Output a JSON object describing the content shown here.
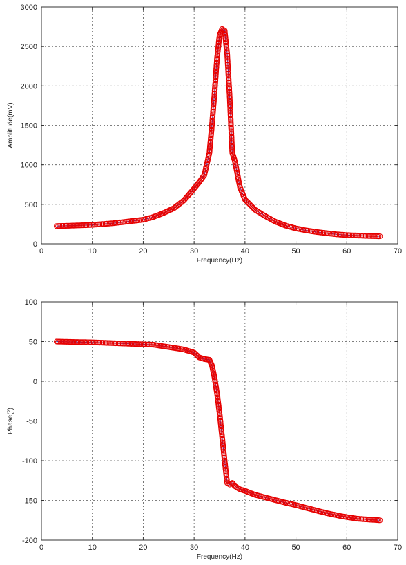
{
  "chart_data": [
    {
      "type": "line",
      "xlabel": "Frequency(Hz)",
      "ylabel": "Amplitude(mV)",
      "xlim": [
        0,
        70
      ],
      "ylim": [
        0,
        3000
      ],
      "xticks": [
        0,
        10,
        20,
        30,
        40,
        50,
        60,
        70
      ],
      "yticks": [
        0,
        500,
        1000,
        1500,
        2000,
        2500,
        3000
      ],
      "grid": true,
      "line_color": "#2b2bd6",
      "marker_color": "#e60000",
      "marker": "circle",
      "series": [
        {
          "x": [
            3,
            5,
            8,
            10,
            12,
            14,
            16,
            18,
            20,
            22,
            24,
            26,
            28,
            30,
            31,
            32,
            33,
            33.5,
            34,
            34.5,
            35,
            35.5,
            36,
            36.5,
            37,
            37.5,
            38,
            39,
            40,
            42,
            44,
            46,
            48,
            50,
            52,
            54,
            56,
            58,
            60,
            62,
            64,
            66.5
          ],
          "y": [
            225,
            228,
            235,
            240,
            250,
            260,
            275,
            290,
            305,
            340,
            390,
            450,
            550,
            700,
            780,
            870,
            1150,
            1500,
            1900,
            2350,
            2640,
            2720,
            2700,
            2400,
            1850,
            1150,
            1050,
            720,
            560,
            430,
            350,
            280,
            230,
            195,
            170,
            150,
            135,
            120,
            110,
            105,
            100,
            95
          ]
        }
      ]
    },
    {
      "type": "line",
      "xlabel": "Frequency(Hz)",
      "ylabel": "Phase(°)",
      "xlim": [
        0,
        70
      ],
      "ylim": [
        -200,
        100
      ],
      "xticks": [
        0,
        10,
        20,
        30,
        40,
        50,
        60,
        70
      ],
      "yticks": [
        -200,
        -150,
        -100,
        -50,
        0,
        50,
        100
      ],
      "grid": true,
      "line_color": "#2b2bd6",
      "marker_color": "#e60000",
      "marker": "circle",
      "series": [
        {
          "x": [
            3,
            6,
            10,
            14,
            18,
            22,
            25,
            28,
            30,
            31,
            32,
            33,
            33.5,
            34,
            34.5,
            35,
            35.5,
            36,
            36.5,
            37,
            37.5,
            38,
            39,
            40,
            42,
            45,
            48,
            50,
            53,
            56,
            59,
            62,
            64,
            66.5
          ],
          "y": [
            50,
            49.5,
            49,
            48,
            47,
            46,
            43,
            40,
            36,
            30,
            28,
            27,
            20,
            5,
            -15,
            -40,
            -70,
            -100,
            -128,
            -130,
            -128,
            -132,
            -136,
            -138,
            -143,
            -148,
            -153,
            -156,
            -161,
            -166,
            -170,
            -173,
            -174,
            -175
          ]
        }
      ]
    }
  ]
}
